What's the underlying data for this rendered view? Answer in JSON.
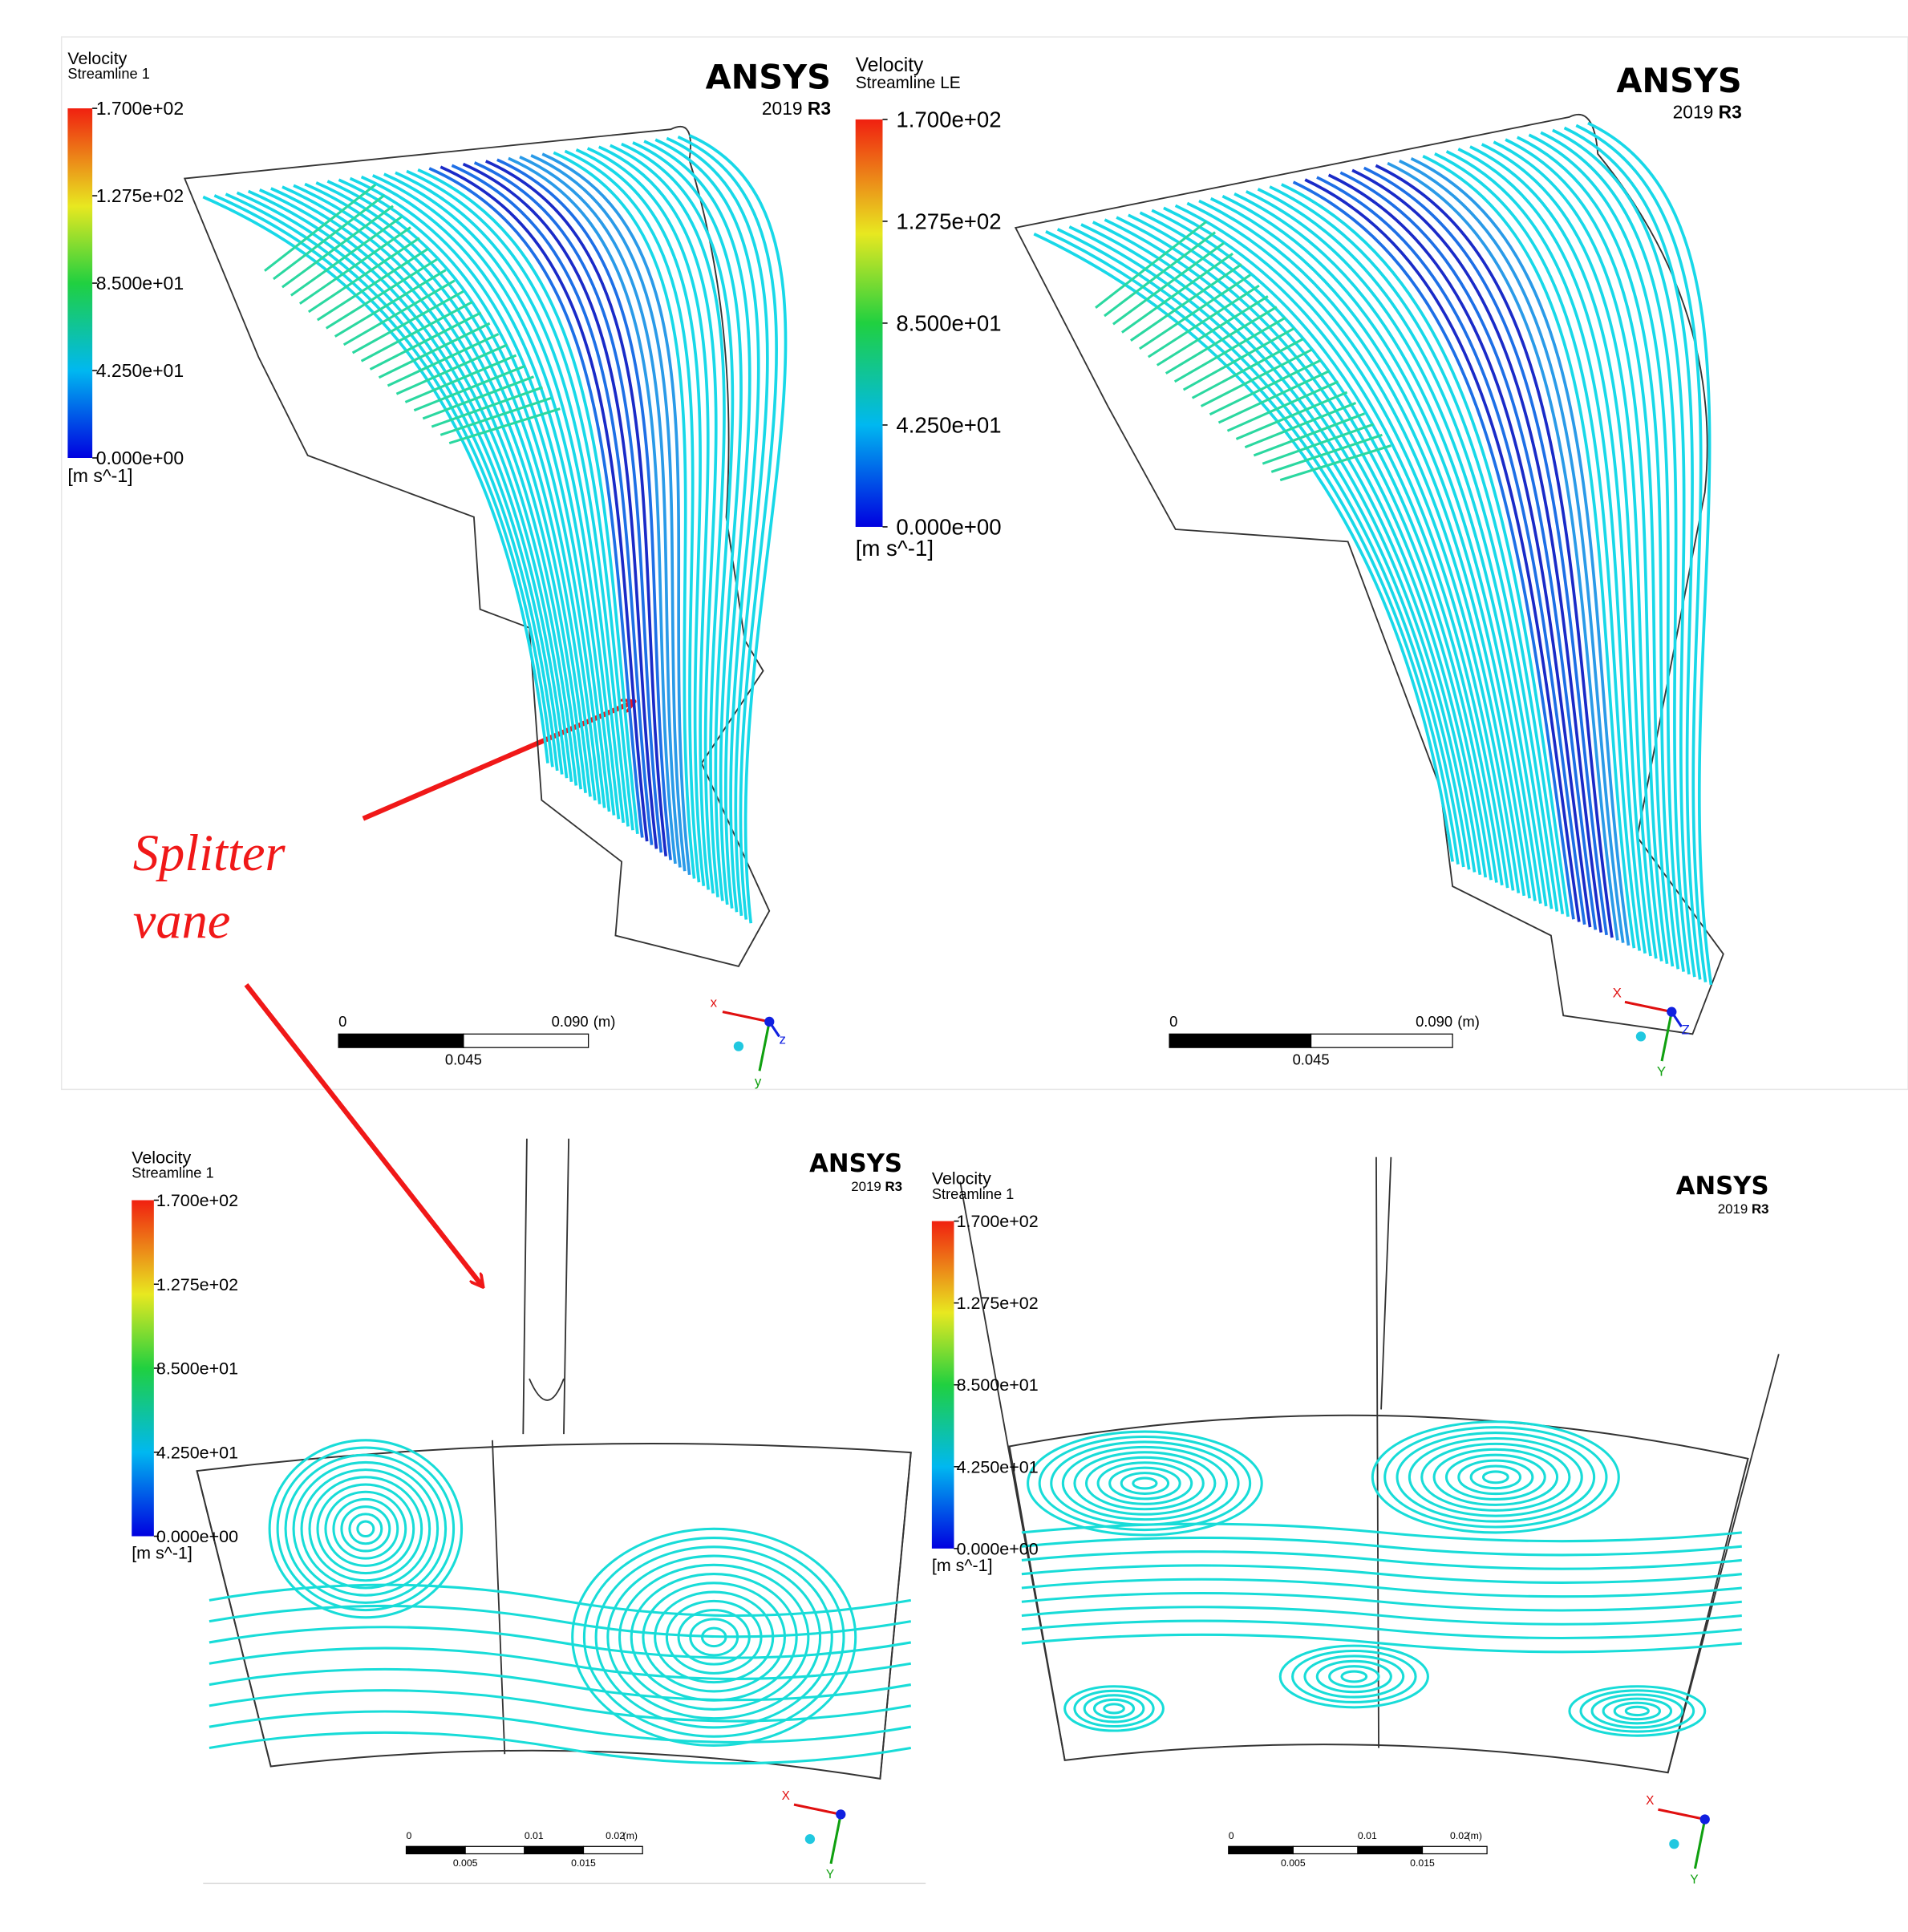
{
  "panels": [
    {
      "legend": {
        "title": "Velocity",
        "subtitle": "Streamline 1",
        "ticks": [
          "1.700e+02",
          "1.275e+02",
          "8.500e+01",
          "4.250e+01",
          "0.000e+00"
        ],
        "unit": "[m s^-1]"
      },
      "logo": "ANSYS",
      "version": "2019",
      "release": "R3",
      "scale": {
        "top": [
          "0",
          "0.090"
        ],
        "unit": "(m)",
        "bottom": [
          "0.045"
        ]
      },
      "axes": [
        "x",
        "y",
        "z"
      ]
    },
    {
      "legend": {
        "title": "Velocity",
        "subtitle": "Streamline LE",
        "ticks": [
          "1.700e+02",
          "1.275e+02",
          "8.500e+01",
          "4.250e+01",
          "0.000e+00"
        ],
        "unit": "[m s^-1]"
      },
      "logo": "ANSYS",
      "version": "2019",
      "release": "R3",
      "scale": {
        "top": [
          "0",
          "0.090"
        ],
        "unit": "(m)",
        "bottom": [
          "0.045"
        ]
      },
      "axes": [
        "X",
        "Y",
        "Z"
      ]
    },
    {
      "legend": {
        "title": "Velocity",
        "subtitle": "Streamline 1",
        "ticks": [
          "1.700e+02",
          "1.275e+02",
          "8.500e+01",
          "4.250e+01",
          "0.000e+00"
        ],
        "unit": "[m s^-1]"
      },
      "logo": "ANSYS",
      "version": "2019",
      "release": "R3",
      "scale": {
        "top": [
          "0",
          "0.01",
          "0.02"
        ],
        "unit": "(m)",
        "bottom": [
          "0.005",
          "0.015"
        ]
      },
      "axes": [
        "X",
        "Y"
      ]
    },
    {
      "legend": {
        "title": "Velocity",
        "subtitle": "Streamline 1",
        "ticks": [
          "1.700e+02",
          "1.275e+02",
          "8.500e+01",
          "4.250e+01",
          "0.000e+00"
        ],
        "unit": "[m s^-1]"
      },
      "logo": "ANSYS",
      "version": "2019",
      "release": "R3",
      "scale": {
        "top": [
          "0",
          "0.01",
          "0.02"
        ],
        "unit": "(m)",
        "bottom": [
          "0.005",
          "0.015"
        ]
      },
      "axes": [
        "X",
        "Y"
      ]
    }
  ],
  "annotation": [
    "Splitter",
    "vane"
  ]
}
